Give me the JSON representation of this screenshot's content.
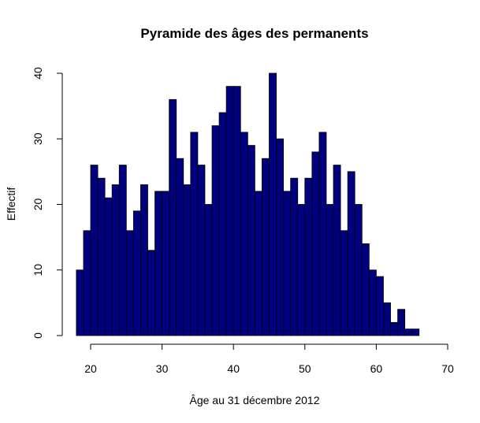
{
  "chart_data": {
    "type": "bar",
    "title": "Pyramide des âges des permanents",
    "xlabel": "Âge au 31 décembre 2012",
    "ylabel": "Effectif",
    "bin_width": 1,
    "x": [
      18,
      19,
      20,
      21,
      22,
      23,
      24,
      25,
      26,
      27,
      28,
      29,
      30,
      31,
      32,
      33,
      34,
      35,
      36,
      37,
      38,
      39,
      40,
      41,
      42,
      43,
      44,
      45,
      46,
      47,
      48,
      49,
      50,
      51,
      52,
      53,
      54,
      55,
      56,
      57,
      58,
      59,
      60,
      61,
      62,
      63,
      64,
      65
    ],
    "values": [
      10,
      16,
      26,
      24,
      21,
      23,
      26,
      16,
      19,
      23,
      13,
      22,
      22,
      36,
      27,
      23,
      31,
      26,
      20,
      32,
      34,
      38,
      38,
      31,
      29,
      22,
      27,
      40,
      30,
      22,
      24,
      20,
      24,
      28,
      31,
      20,
      26,
      16,
      25,
      20,
      14,
      10,
      9,
      5,
      2,
      4,
      1,
      1
    ],
    "xlim": [
      15,
      70
    ],
    "ylim": [
      0,
      40
    ],
    "xticks": [
      "20",
      "30",
      "40",
      "50",
      "60",
      "70"
    ],
    "yticks": [
      "0",
      "10",
      "20",
      "30",
      "40"
    ],
    "bar_color": "#00007F",
    "grid": false,
    "legend": "none"
  }
}
